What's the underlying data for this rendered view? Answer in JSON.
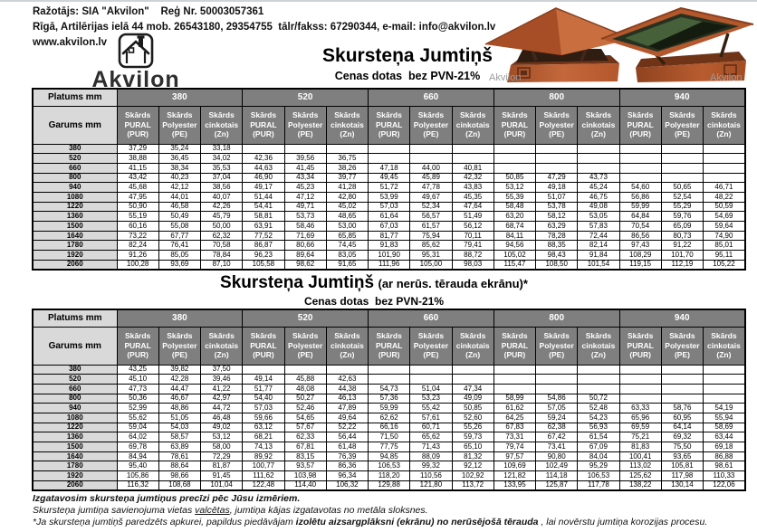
{
  "header": {
    "line1": "Ražotājs: SIA \"Akvilon\"    Reģ Nr. 50003057361",
    "line2": "Rīgā, Artilērijas ielā 44 mob. 26543180, 29354755  tālr/fakss: 67290344, e-mail: info@akvilon.lv",
    "website": "www.akvilon.lv",
    "logo_text": "Akvilon",
    "photo_watermark": "Akvilon"
  },
  "colors": {
    "header_bg": "#7f7f7f",
    "label_bg": "#d9d9d9",
    "copper": "#b3572c"
  },
  "price_table": {
    "corner_top": "Platums mm",
    "corner_left": "Garums mm",
    "widths": [
      "380",
      "520",
      "660",
      "800",
      "940"
    ],
    "materials": [
      "Skārds\nPURAL\n(PUR)",
      "Skārds\nPolyester\n(PE)",
      "Skārds\ncinkotais\n(Zn)"
    ]
  },
  "table1": {
    "title": "Skursteņa Jumtiņš",
    "subtitle": "Cenas dotas  bez PVN-21%",
    "lengths": [
      "380",
      "520",
      "660",
      "800",
      "940",
      "1080",
      "1220",
      "1360",
      "1500",
      "1640",
      "1780",
      "1920",
      "2060"
    ],
    "rows": [
      [
        "37,29",
        "35,24",
        "33,18",
        "",
        "",
        "",
        "",
        "",
        "",
        "",
        "",
        "",
        "",
        "",
        ""
      ],
      [
        "38,88",
        "36,45",
        "34,02",
        "42,36",
        "39,56",
        "36,75",
        "",
        "",
        "",
        "",
        "",
        "",
        "",
        "",
        ""
      ],
      [
        "41,15",
        "38,34",
        "35,53",
        "44,63",
        "41,45",
        "38,26",
        "47,18",
        "44,00",
        "40,81",
        "",
        "",
        "",
        "",
        "",
        ""
      ],
      [
        "43,42",
        "40,23",
        "37,04",
        "46,90",
        "43,34",
        "39,77",
        "49,45",
        "45,89",
        "42,32",
        "50,85",
        "47,29",
        "43,73",
        "",
        "",
        ""
      ],
      [
        "45,68",
        "42,12",
        "38,56",
        "49,17",
        "45,23",
        "41,28",
        "51,72",
        "47,78",
        "43,83",
        "53,12",
        "49,18",
        "45,24",
        "54,60",
        "50,65",
        "46,71"
      ],
      [
        "47,95",
        "44,01",
        "40,07",
        "51,44",
        "47,12",
        "42,80",
        "53,99",
        "49,67",
        "45,35",
        "55,39",
        "51,07",
        "46,75",
        "56,86",
        "52,54",
        "48,22"
      ],
      [
        "50,90",
        "46,58",
        "42,26",
        "54,41",
        "49,71",
        "45,02",
        "57,03",
        "52,34",
        "47,64",
        "58,48",
        "53,78",
        "49,08",
        "59,99",
        "55,29",
        "50,59"
      ],
      [
        "55,19",
        "50,49",
        "45,79",
        "58,81",
        "53,73",
        "48,65",
        "61,64",
        "56,57",
        "51,49",
        "63,20",
        "58,12",
        "53,05",
        "64,84",
        "59,76",
        "54,69"
      ],
      [
        "60,16",
        "55,08",
        "50,00",
        "63,91",
        "58,46",
        "53,00",
        "67,03",
        "61,57",
        "56,12",
        "68,74",
        "63,29",
        "57,83",
        "70,54",
        "65,09",
        "59,64"
      ],
      [
        "73,22",
        "67,77",
        "62,32",
        "77,52",
        "71,69",
        "65,85",
        "81,77",
        "75,94",
        "70,11",
        "84,11",
        "78,28",
        "72,44",
        "86,56",
        "80,73",
        "74,90"
      ],
      [
        "82,24",
        "76,41",
        "70,58",
        "86,87",
        "80,66",
        "74,45",
        "91,83",
        "85,62",
        "79,41",
        "94,56",
        "88,35",
        "82,14",
        "97,43",
        "91,22",
        "85,01"
      ],
      [
        "91,26",
        "85,05",
        "78,84",
        "96,23",
        "89,64",
        "83,05",
        "101,90",
        "95,31",
        "88,72",
        "105,02",
        "98,43",
        "91,84",
        "108,29",
        "101,70",
        "95,11"
      ],
      [
        "100,28",
        "93,69",
        "87,10",
        "105,58",
        "98,62",
        "91,65",
        "111,96",
        "105,00",
        "98,03",
        "115,47",
        "108,50",
        "101,54",
        "119,15",
        "112,19",
        "105,22"
      ]
    ]
  },
  "table2": {
    "title": "Skursteņa Jumtiņš",
    "title_paren": "(ar nerūs. tērauda ekrānu)*",
    "subtitle": "Cenas dotas  bez PVN-21%",
    "lengths": [
      "380",
      "520",
      "660",
      "800",
      "940",
      "1080",
      "1220",
      "1360",
      "1500",
      "1640",
      "1780",
      "1920",
      "2060"
    ],
    "rows": [
      [
        "43,25",
        "39,82",
        "37,50",
        "",
        "",
        "",
        "",
        "",
        "",
        "",
        "",
        "",
        "",
        "",
        ""
      ],
      [
        "45,10",
        "42,28",
        "39,46",
        "49,14",
        "45,88",
        "42,63",
        "",
        "",
        "",
        "",
        "",
        "",
        "",
        "",
        ""
      ],
      [
        "47,73",
        "44,47",
        "41,22",
        "51,77",
        "48,08",
        "44,38",
        "54,73",
        "51,04",
        "47,34",
        "",
        "",
        "",
        "",
        "",
        ""
      ],
      [
        "50,36",
        "46,67",
        "42,97",
        "54,40",
        "50,27",
        "46,13",
        "57,36",
        "53,23",
        "49,09",
        "58,99",
        "54,86",
        "50,72",
        "",
        "",
        ""
      ],
      [
        "52,99",
        "48,86",
        "44,72",
        "57,03",
        "52,46",
        "47,89",
        "59,99",
        "55,42",
        "50,85",
        "61,62",
        "57,05",
        "52,48",
        "63,33",
        "58,76",
        "54,19"
      ],
      [
        "55,62",
        "51,05",
        "46,48",
        "59,66",
        "54,65",
        "49,64",
        "62,62",
        "57,61",
        "52,60",
        "64,25",
        "59,24",
        "54,23",
        "65,96",
        "60,95",
        "55,94"
      ],
      [
        "59,04",
        "54,03",
        "49,02",
        "63,12",
        "57,67",
        "52,22",
        "66,16",
        "60,71",
        "55,26",
        "67,83",
        "62,38",
        "56,93",
        "69,59",
        "64,14",
        "58,69"
      ],
      [
        "64,02",
        "58,57",
        "53,12",
        "68,21",
        "62,33",
        "56,44",
        "71,50",
        "65,62",
        "59,73",
        "73,31",
        "67,42",
        "61,54",
        "75,21",
        "69,32",
        "63,44"
      ],
      [
        "69,78",
        "63,89",
        "58,00",
        "74,13",
        "67,81",
        "61,48",
        "77,75",
        "71,43",
        "65,10",
        "79,74",
        "73,41",
        "67,09",
        "81,83",
        "75,50",
        "69,18"
      ],
      [
        "84,94",
        "78,61",
        "72,29",
        "89,92",
        "83,15",
        "76,39",
        "94,85",
        "88,09",
        "81,32",
        "97,57",
        "90,80",
        "84,04",
        "100,41",
        "93,65",
        "86,88"
      ],
      [
        "95,40",
        "88,64",
        "81,87",
        "100,77",
        "93,57",
        "86,36",
        "106,53",
        "99,32",
        "92,12",
        "109,69",
        "102,49",
        "95,29",
        "113,02",
        "105,81",
        "98,61"
      ],
      [
        "105,86",
        "98,66",
        "91,45",
        "111,62",
        "103,98",
        "96,34",
        "118,20",
        "110,56",
        "102,92",
        "121,82",
        "114,18",
        "106,53",
        "125,62",
        "117,98",
        "110,33"
      ],
      [
        "116,32",
        "108,68",
        "101,04",
        "122,48",
        "114,40",
        "106,32",
        "129,88",
        "121,80",
        "113,72",
        "133,95",
        "125,87",
        "117,78",
        "138,22",
        "130,14",
        "122,06"
      ]
    ]
  },
  "footer": {
    "line1": "Izgatavosim skursteņa jumtiņus precīzi pēc Jūsu izmēriem.",
    "line2_pre": "Skursteņa jumtiņa savienojuma vietas ",
    "line2_underlined": "valcētas",
    "line2_post": ", jumtiņa kājas izgatavotas no metāla sloksnes.",
    "line3_pre": "*Ja skursteņa jumtiņš paredzēts apkurei, papildus piedāvājam ",
    "line3_bold": "izolētu aizsargplāksni (ekrānu) no nerūsējošā tērauda",
    "line3_post": " , lai novērstu jumtiņa korozijas procesu."
  }
}
